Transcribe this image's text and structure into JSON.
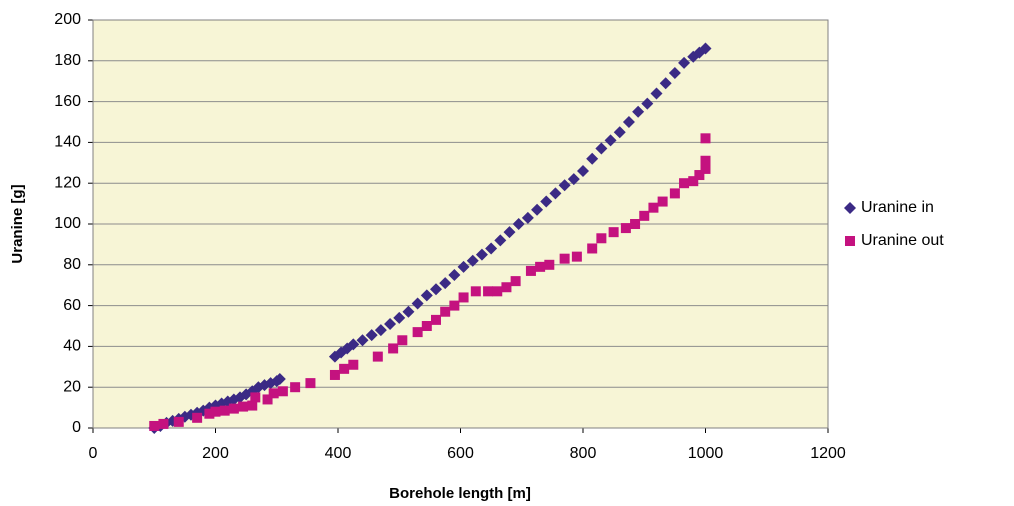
{
  "chart_data": {
    "type": "scatter",
    "x_label": "Borehole length [m]",
    "y_label": "Uranine [g]",
    "xlim": [
      0,
      1200
    ],
    "xticks": [
      0,
      200,
      400,
      600,
      800,
      1000,
      1200
    ],
    "ylim": [
      0,
      200
    ],
    "yticks": [
      0,
      20,
      40,
      60,
      80,
      100,
      120,
      140,
      160,
      180,
      200
    ],
    "grid": true,
    "legend": "right",
    "background": "#f7f5d6",
    "series": [
      {
        "name": "Uranine in",
        "color": "#3b2a85",
        "marker": "diamond",
        "x": [
          100,
          110,
          120,
          130,
          140,
          150,
          160,
          170,
          180,
          190,
          200,
          210,
          220,
          230,
          240,
          250,
          260,
          270,
          280,
          290,
          300,
          305,
          395,
          405,
          415,
          425,
          440,
          455,
          470,
          485,
          500,
          515,
          530,
          545,
          560,
          575,
          590,
          605,
          620,
          635,
          650,
          665,
          680,
          695,
          710,
          725,
          740,
          755,
          770,
          785,
          800,
          815,
          830,
          845,
          860,
          875,
          890,
          905,
          920,
          935,
          950,
          965,
          980,
          990,
          1000
        ],
        "values": [
          0,
          1,
          2.5,
          3.5,
          4.5,
          5.5,
          6.5,
          7.5,
          8.5,
          10,
          11,
          12,
          13,
          14,
          15,
          16.5,
          18,
          20,
          21,
          22,
          23,
          24,
          35,
          37,
          39,
          41,
          43,
          45.5,
          48,
          51,
          54,
          57,
          61,
          65,
          68,
          71,
          75,
          79,
          82,
          85,
          88,
          92,
          96,
          100,
          103,
          107,
          111,
          115,
          119,
          122,
          126,
          132,
          137,
          141,
          145,
          150,
          155,
          159,
          164,
          169,
          174,
          179,
          182,
          184,
          186
        ]
      },
      {
        "name": "Uranine out",
        "color": "#c4127f",
        "marker": "square",
        "x": [
          100,
          115,
          140,
          170,
          190,
          200,
          215,
          230,
          245,
          260,
          265,
          285,
          295,
          310,
          330,
          355,
          395,
          410,
          425,
          465,
          490,
          505,
          530,
          545,
          560,
          575,
          590,
          605,
          625,
          645,
          660,
          675,
          690,
          715,
          730,
          745,
          770,
          790,
          815,
          830,
          850,
          870,
          885,
          900,
          915,
          930,
          950,
          965,
          980,
          990,
          1000,
          1000,
          1000
        ],
        "values": [
          1,
          2,
          3,
          5,
          7,
          8,
          8.5,
          9.5,
          10.5,
          11,
          15,
          14,
          17,
          18,
          20,
          22,
          26,
          29,
          31,
          35,
          39,
          43,
          47,
          50,
          53,
          57,
          60,
          64,
          67,
          67,
          67,
          69,
          72,
          77,
          79,
          80,
          83,
          84,
          88,
          93,
          96,
          98,
          100,
          104,
          108,
          111,
          115,
          120,
          121,
          124,
          127,
          131,
          142
        ]
      }
    ]
  }
}
